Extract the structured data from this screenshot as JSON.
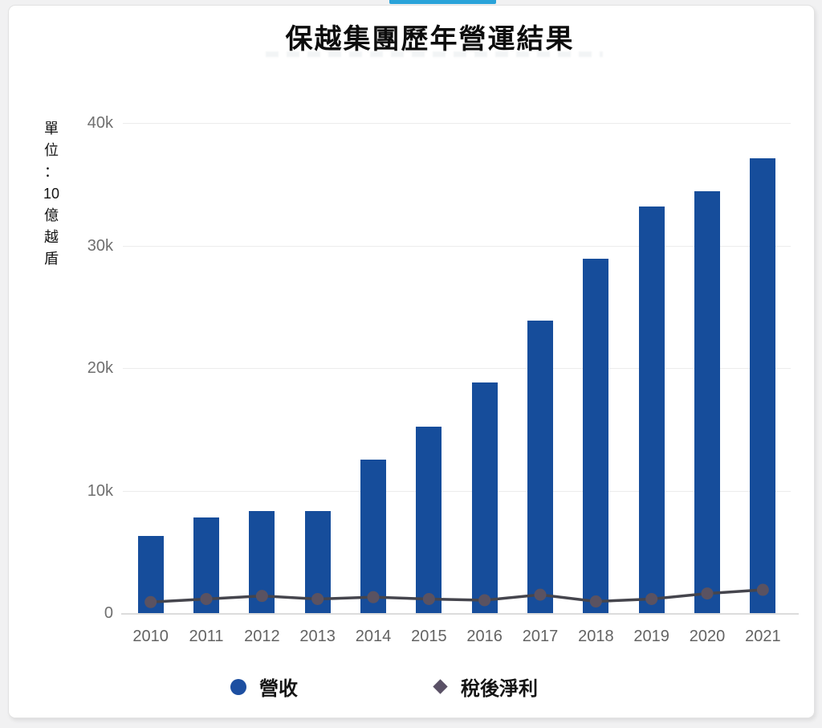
{
  "page": {
    "tab_indicator_color": "#2aa3d9"
  },
  "header": {
    "title": "保越集團歷年營運結果"
  },
  "y_axis": {
    "unit_label": "單位：10億越盾",
    "unit_chars": [
      "單",
      "位",
      "：",
      "10",
      "億",
      "越",
      "盾"
    ]
  },
  "legend": [
    {
      "label": "營收",
      "marker": "circle",
      "color": "#1d4fa1"
    },
    {
      "label": "稅後淨利",
      "marker": "diamond",
      "color": "#5a5166"
    }
  ],
  "chart_data": {
    "type": "bar",
    "title": "保越集團歷年營運結果",
    "categories": [
      "2010",
      "2011",
      "2012",
      "2013",
      "2014",
      "2015",
      "2016",
      "2017",
      "2018",
      "2019",
      "2020",
      "2021"
    ],
    "series": [
      {
        "name": "營收",
        "type": "bar",
        "color": "#164d9b",
        "values": [
          6300,
          7800,
          8300,
          8300,
          12500,
          15200,
          18800,
          23900,
          28900,
          33200,
          34400,
          37100
        ]
      },
      {
        "name": "稅後淨利",
        "type": "line",
        "color": "#5a5261",
        "line_color": "#45454d",
        "values": [
          900,
          1150,
          1400,
          1150,
          1300,
          1150,
          1050,
          1500,
          950,
          1150,
          1600,
          1900
        ]
      }
    ],
    "xlabel": "",
    "ylabel": "單位：10億越盾",
    "ylim": [
      0,
      40000
    ],
    "yticks": [
      {
        "value": 0,
        "label": "0"
      },
      {
        "value": 10000,
        "label": "10k"
      },
      {
        "value": 20000,
        "label": "20k"
      },
      {
        "value": 30000,
        "label": "30k"
      },
      {
        "value": 40000,
        "label": "40k"
      }
    ],
    "grid": true,
    "legend_position": "bottom"
  }
}
